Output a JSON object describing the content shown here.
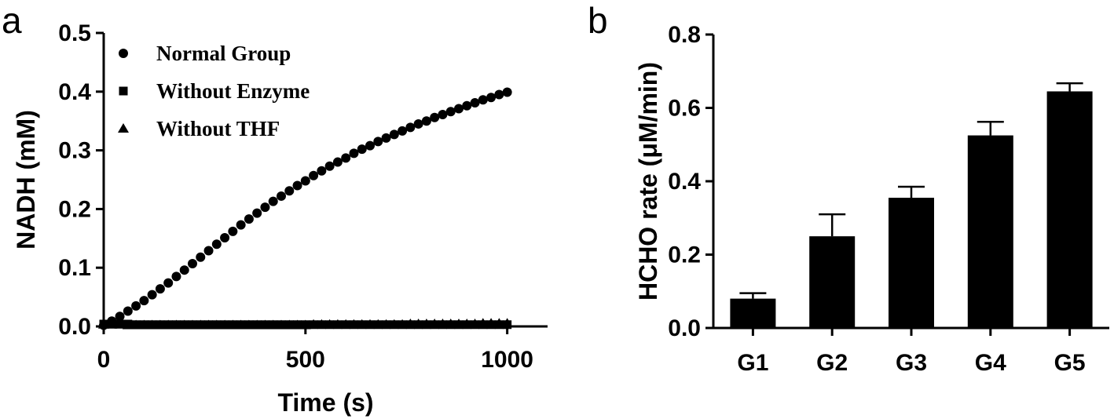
{
  "panel_labels": [
    "a",
    "b"
  ],
  "chart_data": [
    {
      "type": "scatter",
      "panel": "a",
      "title": "",
      "xlabel": "Time (s)",
      "ylabel": "NADH (mM)",
      "xlim": [
        0,
        1100
      ],
      "ylim": [
        0,
        0.5
      ],
      "x_ticks": [
        0,
        500,
        1000
      ],
      "x_tick_labels": [
        "0",
        "500",
        "1000"
      ],
      "y_ticks": [
        0,
        0.1,
        0.2,
        0.3,
        0.4,
        0.5
      ],
      "y_tick_labels": [
        "0.0",
        "0.1",
        "0.2",
        "0.3",
        "0.4",
        "0.5"
      ],
      "grid": false,
      "legend_position": "top-left",
      "series": [
        {
          "name": "Normal Group",
          "marker": "circle",
          "x": [
            0,
            20,
            40,
            60,
            80,
            100,
            120,
            140,
            160,
            180,
            200,
            220,
            240,
            260,
            280,
            300,
            320,
            340,
            360,
            380,
            400,
            420,
            440,
            460,
            480,
            500,
            520,
            540,
            560,
            580,
            600,
            620,
            640,
            660,
            680,
            700,
            720,
            740,
            760,
            780,
            800,
            820,
            840,
            860,
            880,
            900,
            920,
            940,
            960,
            980,
            1000
          ],
          "y": [
            0.002,
            0.009,
            0.017,
            0.026,
            0.035,
            0.044,
            0.054,
            0.064,
            0.074,
            0.085,
            0.096,
            0.107,
            0.118,
            0.129,
            0.14,
            0.151,
            0.162,
            0.173,
            0.183,
            0.193,
            0.203,
            0.213,
            0.222,
            0.231,
            0.24,
            0.248,
            0.257,
            0.265,
            0.273,
            0.28,
            0.287,
            0.295,
            0.302,
            0.308,
            0.315,
            0.321,
            0.327,
            0.333,
            0.339,
            0.345,
            0.35,
            0.356,
            0.361,
            0.366,
            0.371,
            0.376,
            0.381,
            0.386,
            0.39,
            0.395,
            0.399
          ]
        },
        {
          "name": "Without Enzyme",
          "marker": "square",
          "x": [
            0,
            20,
            40,
            60,
            80,
            100,
            120,
            140,
            160,
            180,
            200,
            220,
            240,
            260,
            280,
            300,
            320,
            340,
            360,
            380,
            400,
            420,
            440,
            460,
            480,
            500,
            520,
            540,
            560,
            580,
            600,
            620,
            640,
            660,
            680,
            700,
            720,
            740,
            760,
            780,
            800,
            820,
            840,
            860,
            880,
            900,
            920,
            940,
            960,
            980,
            1000
          ],
          "y": [
            0.004,
            0.004,
            0.004,
            0.004,
            0.003,
            0.003,
            0.003,
            0.003,
            0.003,
            0.003,
            0.003,
            0.003,
            0.003,
            0.003,
            0.003,
            0.003,
            0.003,
            0.003,
            0.003,
            0.003,
            0.003,
            0.003,
            0.003,
            0.003,
            0.003,
            0.003,
            0.003,
            0.003,
            0.003,
            0.003,
            0.003,
            0.003,
            0.003,
            0.003,
            0.003,
            0.003,
            0.003,
            0.003,
            0.003,
            0.003,
            0.003,
            0.003,
            0.003,
            0.003,
            0.003,
            0.003,
            0.003,
            0.003,
            0.003,
            0.003,
            0.003
          ]
        },
        {
          "name": "Without THF",
          "marker": "triangle",
          "x": [
            0,
            20,
            40,
            60,
            80,
            100,
            120,
            140,
            160,
            180,
            200,
            220,
            240,
            260,
            280,
            300,
            320,
            340,
            360,
            380,
            400,
            420,
            440,
            460,
            480,
            500,
            520,
            540,
            560,
            580,
            600,
            620,
            640,
            660,
            680,
            700,
            720,
            740,
            760,
            780,
            800,
            820,
            840,
            860,
            880,
            900,
            920,
            940,
            960,
            980,
            1000
          ],
          "y": [
            0.003,
            0.003,
            0.003,
            0.002,
            0.002,
            0.002,
            0.002,
            0.002,
            0.002,
            0.002,
            0.002,
            0.002,
            0.002,
            0.002,
            0.002,
            0.002,
            0.002,
            0.002,
            0.002,
            0.002,
            0.002,
            0.002,
            0.002,
            0.002,
            0.002,
            0.002,
            0.003,
            0.003,
            0.003,
            0.003,
            0.003,
            0.003,
            0.003,
            0.003,
            0.003,
            0.003,
            0.003,
            0.003,
            0.004,
            0.004,
            0.004,
            0.004,
            0.004,
            0.004,
            0.004,
            0.004,
            0.004,
            0.005,
            0.005,
            0.005,
            0.005
          ]
        }
      ]
    },
    {
      "type": "bar",
      "panel": "b",
      "title": "",
      "xlabel": "",
      "ylabel": "HCHO rate (μM/min)",
      "ylim": [
        0,
        0.8
      ],
      "y_ticks": [
        0,
        0.2,
        0.4,
        0.6,
        0.8
      ],
      "y_tick_labels": [
        "0.0",
        "0.2",
        "0.4",
        "0.6",
        "0.8"
      ],
      "grid": false,
      "categories": [
        "G1",
        "G2",
        "G3",
        "G4",
        "G5"
      ],
      "values": [
        0.08,
        0.25,
        0.355,
        0.525,
        0.645
      ],
      "error": [
        0.015,
        0.06,
        0.03,
        0.037,
        0.022
      ],
      "bar_color": "#000000"
    }
  ]
}
